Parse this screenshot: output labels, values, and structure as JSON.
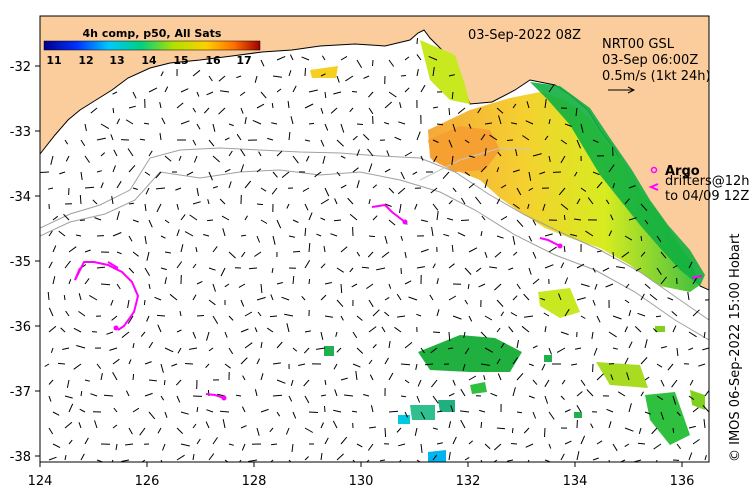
{
  "header": {
    "date_title": "03-Sep-2022 08Z",
    "composite_label": "4h comp, p50, All Sats"
  },
  "colorbar": {
    "ticks": [
      "11",
      "12",
      "13",
      "14",
      "15",
      "16",
      "17"
    ],
    "colors": [
      "#00008b",
      "#0030ff",
      "#00c8ff",
      "#00d080",
      "#b0e000",
      "#ffd000",
      "#ff7000",
      "#a00000"
    ]
  },
  "info": {
    "source": "NRT00 GSL",
    "time": "03-Sep 06:00Z",
    "scale": "0.5m/s (1kt 24h)"
  },
  "legend": {
    "argo_label": "Argo",
    "drifters_line1": "drifters@12h",
    "drifters_line2": "to 04/09 12Z"
  },
  "axes": {
    "x_ticks": [
      "124",
      "126",
      "128",
      "130",
      "132",
      "134",
      "136"
    ],
    "y_ticks": [
      "-32",
      "-33",
      "-34",
      "-35",
      "-36",
      "-37",
      "-38"
    ],
    "x_range": [
      124,
      136.5
    ],
    "y_range": [
      -38.1,
      -31.3
    ]
  },
  "credit": "© IMOS 06-Sep-2022 15:00 Hobart",
  "colors": {
    "land": "#fccd9c",
    "drifter": "#ff00ff",
    "shelf": "#a0a0a0"
  }
}
